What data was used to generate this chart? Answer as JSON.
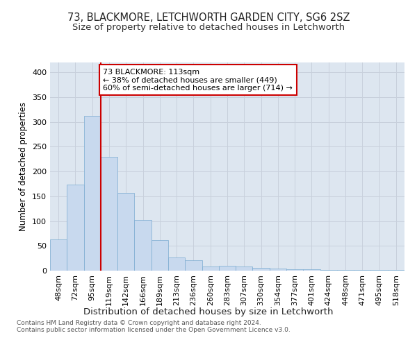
{
  "title": "73, BLACKMORE, LETCHWORTH GARDEN CITY, SG6 2SZ",
  "subtitle": "Size of property relative to detached houses in Letchworth",
  "xlabel": "Distribution of detached houses by size in Letchworth",
  "ylabel": "Number of detached properties",
  "bin_labels": [
    "48sqm",
    "72sqm",
    "95sqm",
    "119sqm",
    "142sqm",
    "166sqm",
    "189sqm",
    "213sqm",
    "236sqm",
    "260sqm",
    "283sqm",
    "307sqm",
    "330sqm",
    "354sqm",
    "377sqm",
    "401sqm",
    "424sqm",
    "448sqm",
    "471sqm",
    "495sqm",
    "518sqm"
  ],
  "bar_values": [
    63,
    174,
    312,
    230,
    157,
    102,
    62,
    27,
    21,
    9,
    10,
    8,
    6,
    4,
    3,
    3,
    1,
    1,
    1,
    2,
    2
  ],
  "bar_color": "#c8d9ee",
  "bar_edge_color": "#7aaad0",
  "vline_color": "#cc0000",
  "annotation_line1": "73 BLACKMORE: 113sqm",
  "annotation_line2": "← 38% of detached houses are smaller (449)",
  "annotation_line3": "60% of semi-detached houses are larger (714) →",
  "annotation_box_color": "#ffffff",
  "annotation_box_edge_color": "#cc0000",
  "ylim": [
    0,
    420
  ],
  "yticks": [
    0,
    50,
    100,
    150,
    200,
    250,
    300,
    350,
    400
  ],
  "grid_color": "#c8d0dc",
  "background_color": "#dde6f0",
  "footnote": "Contains HM Land Registry data © Crown copyright and database right 2024.\nContains public sector information licensed under the Open Government Licence v3.0.",
  "title_fontsize": 10.5,
  "subtitle_fontsize": 9.5,
  "xlabel_fontsize": 9.5,
  "ylabel_fontsize": 8.5,
  "tick_fontsize": 8,
  "annotation_fontsize": 8,
  "footnote_fontsize": 6.5
}
